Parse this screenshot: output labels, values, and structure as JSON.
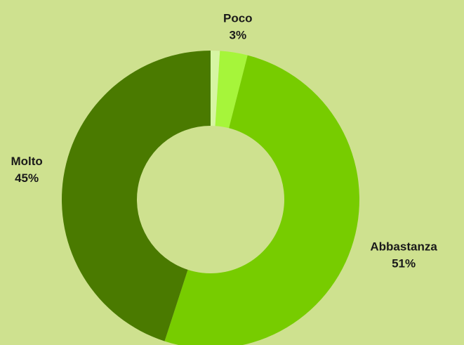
{
  "chart_data": {
    "type": "donut",
    "categories": [
      null,
      "Poco",
      "Abbastanza",
      "Molto"
    ],
    "values": [
      1,
      3,
      51,
      45
    ],
    "value_labels": [
      null,
      "3%",
      "51%",
      "45%"
    ],
    "colors": [
      "#d6f5a3",
      "#a6f53a",
      "#77cc00",
      "#4a7a00"
    ]
  }
}
